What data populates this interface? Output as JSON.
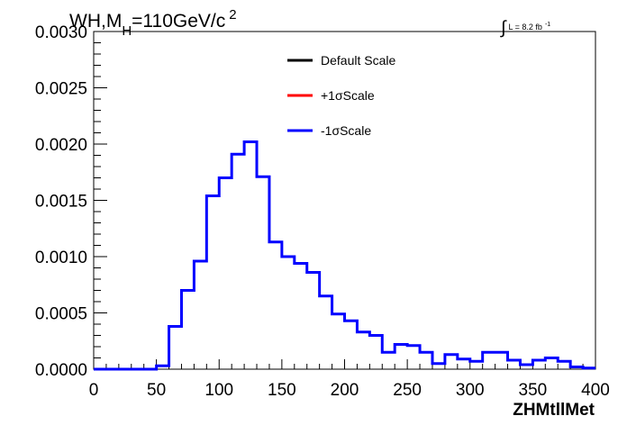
{
  "chart_data": {
    "type": "line",
    "title": {
      "main": "WH,M",
      "subscript": "H",
      "rest": "=110GeV/c",
      "superscript": "2"
    },
    "lumi": {
      "symbol": "∫",
      "text": "L = 8.2 fb",
      "superscript": "-1"
    },
    "xlabel": "ZHMtllMet",
    "ylabel": "",
    "xlim": [
      0,
      400
    ],
    "ylim": [
      0,
      0.003
    ],
    "x_ticks": [
      "0",
      "50",
      "100",
      "150",
      "200",
      "250",
      "300",
      "350",
      "400"
    ],
    "y_ticks": [
      "0.0000",
      "0.0005",
      "0.0010",
      "0.0015",
      "0.0020",
      "0.0025",
      "0.0030"
    ],
    "grid": false,
    "legend_position": "top-center",
    "bin_width": 10,
    "bin_start": 0,
    "series": [
      {
        "name": "Default Scale",
        "color": "#000000",
        "values": [
          0,
          0,
          0,
          0,
          0,
          3e-05,
          0.00038,
          0.0007,
          0.00096,
          0.00154,
          0.0017,
          0.00191,
          0.00202,
          0.00171,
          0.00113,
          0.001,
          0.00094,
          0.00086,
          0.00065,
          0.00049,
          0.00043,
          0.00033,
          0.0003,
          0.00015,
          0.00022,
          0.00021,
          0.00015,
          5e-05,
          0.00013,
          9e-05,
          7e-05,
          0.00015,
          0.00015,
          8e-05,
          4e-05,
          8e-05,
          0.0001,
          7e-05,
          2e-05,
          1e-05
        ],
        "visible_in_plot": false
      },
      {
        "name": "+1σScale",
        "color": "#ff0000",
        "values": [
          0,
          0,
          0,
          0,
          0,
          3e-05,
          0.00038,
          0.0007,
          0.00096,
          0.00154,
          0.0017,
          0.00191,
          0.00202,
          0.00171,
          0.00113,
          0.001,
          0.00094,
          0.00086,
          0.00065,
          0.00049,
          0.00043,
          0.00033,
          0.0003,
          0.00015,
          0.00022,
          0.00021,
          0.00015,
          5e-05,
          0.00013,
          9e-05,
          7e-05,
          0.00015,
          0.00015,
          8e-05,
          4e-05,
          8e-05,
          0.0001,
          7e-05,
          2e-05,
          1e-05
        ],
        "visible_in_plot": false
      },
      {
        "name": "-1σScale",
        "color": "#0000ff",
        "values": [
          0,
          0,
          0,
          0,
          0,
          3e-05,
          0.00038,
          0.0007,
          0.00096,
          0.00154,
          0.0017,
          0.00191,
          0.00202,
          0.00171,
          0.00113,
          0.001,
          0.00094,
          0.00086,
          0.00065,
          0.00049,
          0.00043,
          0.00033,
          0.0003,
          0.00015,
          0.00022,
          0.00021,
          0.00015,
          5e-05,
          0.00013,
          9e-05,
          7e-05,
          0.00015,
          0.00015,
          8e-05,
          4e-05,
          8e-05,
          0.0001,
          7e-05,
          2e-05,
          1e-05
        ],
        "visible_in_plot": true
      }
    ]
  }
}
